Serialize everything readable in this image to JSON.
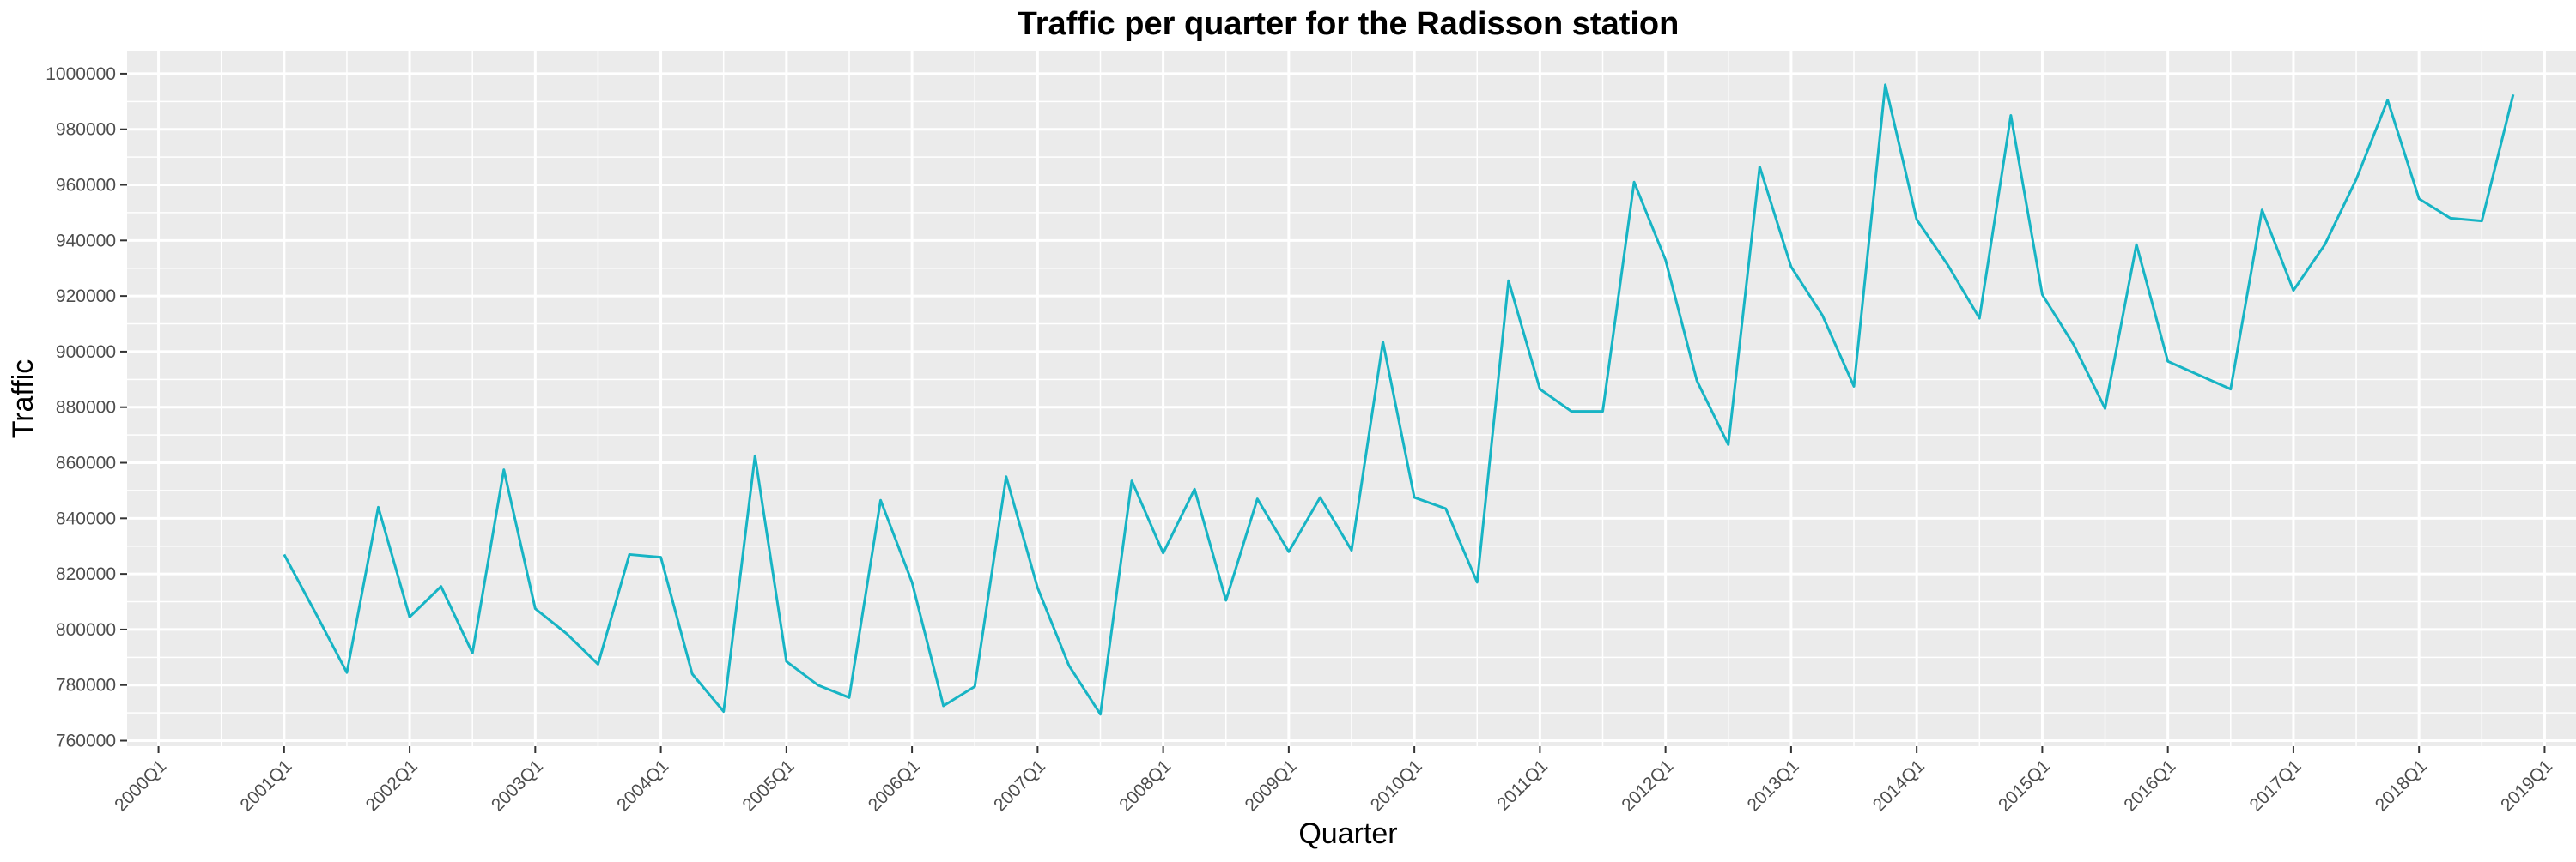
{
  "chart_data": {
    "type": "line",
    "title": "Traffic per quarter for the Radisson station",
    "xlabel": "Quarter",
    "ylabel": "Traffic",
    "x_tick_labels": [
      "2000Q1",
      "2001Q1",
      "2002Q1",
      "2003Q1",
      "2004Q1",
      "2005Q1",
      "2006Q1",
      "2007Q1",
      "2008Q1",
      "2009Q1",
      "2010Q1",
      "2011Q1",
      "2012Q1",
      "2013Q1",
      "2014Q1",
      "2015Q1",
      "2016Q1",
      "2017Q1",
      "2018Q1",
      "2019Q1"
    ],
    "y_ticks": [
      760000,
      780000,
      800000,
      820000,
      840000,
      860000,
      880000,
      900000,
      920000,
      940000,
      960000,
      980000,
      1000000
    ],
    "y_tick_labels": [
      "760000",
      "780000",
      "800000",
      "820000",
      "840000",
      "860000",
      "880000",
      "900000",
      "920000",
      "940000",
      "960000",
      "980000",
      "1000000"
    ],
    "xlim": [
      "1999Q4",
      "2019Q2"
    ],
    "ylim": [
      758000,
      1008000
    ],
    "grid": true,
    "legend": "none",
    "line_color": "#17b4c4",
    "panel_color": "#ebebeb",
    "grid_color": "#ffffff",
    "series": [
      {
        "x": [
          "2001Q1",
          "2001Q2",
          "2001Q3",
          "2001Q4",
          "2002Q1",
          "2002Q2",
          "2002Q3",
          "2002Q4",
          "2003Q1",
          "2003Q2",
          "2003Q3",
          "2003Q4",
          "2004Q1",
          "2004Q2",
          "2004Q3",
          "2004Q4",
          "2005Q1",
          "2005Q2",
          "2005Q3",
          "2005Q4",
          "2006Q1",
          "2006Q2",
          "2006Q3",
          "2006Q4",
          "2007Q1",
          "2007Q2",
          "2007Q3",
          "2007Q4",
          "2008Q1",
          "2008Q2",
          "2008Q3",
          "2008Q4",
          "2009Q1",
          "2009Q2",
          "2009Q3",
          "2009Q4",
          "2010Q1",
          "2010Q2",
          "2010Q3",
          "2010Q4",
          "2011Q1",
          "2011Q2",
          "2011Q3",
          "2011Q4",
          "2012Q1",
          "2012Q2",
          "2012Q3",
          "2012Q4",
          "2013Q1",
          "2013Q2",
          "2013Q3",
          "2013Q4",
          "2014Q1",
          "2014Q2",
          "2014Q3",
          "2014Q4",
          "2015Q1",
          "2015Q2",
          "2015Q3",
          "2015Q4",
          "2016Q1",
          "2016Q2",
          "2016Q3",
          "2016Q4",
          "2017Q1",
          "2017Q2",
          "2017Q3",
          "2017Q4",
          "2018Q1",
          "2018Q2",
          "2018Q3",
          "2018Q4"
        ],
        "values": [
          827000,
          806000,
          784500,
          844000,
          804500,
          815500,
          791500,
          857500,
          807500,
          798500,
          787500,
          827000,
          826000,
          784000,
          770500,
          862500,
          788500,
          780000,
          775500,
          846500,
          817000,
          772500,
          779500,
          855000,
          815000,
          787000,
          769500,
          853500,
          827500,
          850500,
          810500,
          847000,
          828000,
          847500,
          828500,
          903500,
          847500,
          843500,
          817000,
          925500,
          886500,
          878500,
          878500,
          961000,
          933000,
          889500,
          866500,
          966500,
          930500,
          913000,
          887500,
          996000,
          947500,
          931000,
          912000,
          985000,
          920500,
          902500,
          879500,
          938500,
          896500,
          891500,
          886500,
          951000,
          922000,
          938500,
          962000,
          990500,
          955000,
          948000,
          947000,
          992500
        ]
      }
    ]
  }
}
